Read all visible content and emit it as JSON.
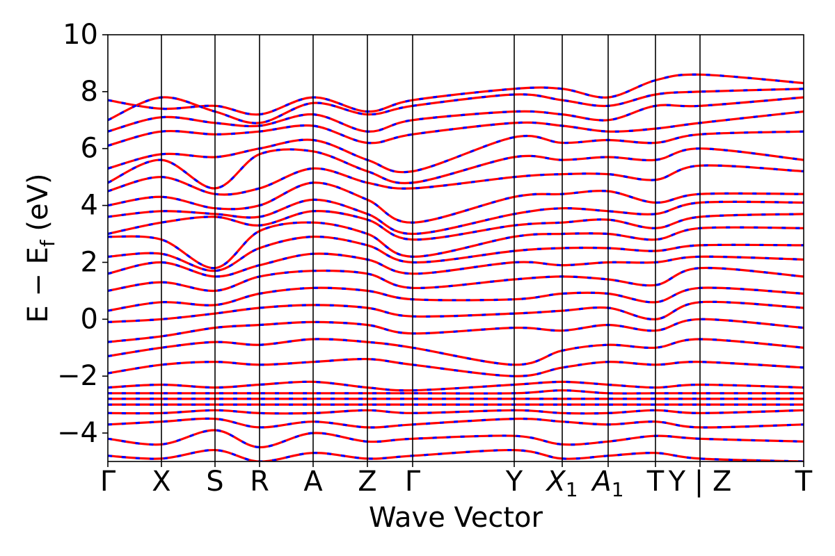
{
  "chart_data": {
    "type": "line",
    "title": "",
    "xlabel": "Wave Vector",
    "ylabel_parts": {
      "main": "E − E",
      "sub": "f",
      "tail": " (eV)"
    },
    "ylim": [
      -5,
      10
    ],
    "yticks": [
      {
        "value": -4,
        "label": "−4"
      },
      {
        "value": -2,
        "label": "−2"
      },
      {
        "value": 0,
        "label": "0"
      },
      {
        "value": 2,
        "label": "2"
      },
      {
        "value": 4,
        "label": "4"
      },
      {
        "value": 6,
        "label": "6"
      },
      {
        "value": 8,
        "label": "8"
      },
      {
        "value": 10,
        "label": "10"
      }
    ],
    "kpoints": [
      {
        "label": "Γ",
        "sub": "",
        "x": 0.0
      },
      {
        "label": "X",
        "sub": "",
        "x": 0.077
      },
      {
        "label": "S",
        "sub": "",
        "x": 0.154
      },
      {
        "label": "R",
        "sub": "",
        "x": 0.218
      },
      {
        "label": "A",
        "sub": "",
        "x": 0.295
      },
      {
        "label": "Z",
        "sub": "",
        "x": 0.373
      },
      {
        "label": "Γ",
        "sub": "",
        "x": 0.438
      },
      {
        "label": "Y",
        "sub": "",
        "x": 0.584
      },
      {
        "label": "X",
        "sub": "1",
        "x": 0.653
      },
      {
        "label": "A",
        "sub": "1",
        "x": 0.719
      },
      {
        "label": "T",
        "sub": "",
        "x": 0.787
      },
      {
        "label": "Y | Z",
        "sub": "",
        "x": 0.851
      },
      {
        "label": "T",
        "sub": "",
        "x": 1.0
      }
    ],
    "series": [
      {
        "color": "#ff0000",
        "dash": "none"
      },
      {
        "color": "#0000ff",
        "dash": "dashed"
      }
    ],
    "bands_note_values": [
      [
        7.7,
        7.4,
        7.5,
        7.2,
        7.8,
        7.3,
        7.7,
        8.1,
        8.1,
        7.8,
        8.4,
        8.6,
        8.3
      ],
      [
        7.0,
        7.8,
        7.3,
        6.9,
        7.6,
        7.2,
        7.5,
        7.9,
        7.7,
        7.5,
        7.9,
        8.0,
        8.1
      ],
      [
        6.6,
        7.1,
        6.9,
        6.8,
        7.2,
        6.6,
        7.0,
        7.3,
        7.2,
        7.0,
        7.5,
        7.5,
        7.8
      ],
      [
        6.1,
        6.6,
        6.5,
        6.6,
        6.8,
        6.2,
        6.5,
        6.9,
        6.8,
        6.6,
        6.7,
        6.9,
        7.3
      ],
      [
        5.3,
        5.8,
        5.7,
        6.0,
        6.3,
        5.6,
        5.2,
        6.4,
        6.2,
        6.3,
        6.2,
        6.5,
        6.6
      ],
      [
        4.8,
        5.6,
        4.6,
        5.8,
        5.9,
        5.2,
        4.8,
        5.7,
        5.6,
        5.7,
        5.6,
        6.0,
        5.6
      ],
      [
        4.5,
        5.0,
        4.4,
        4.6,
        5.3,
        4.8,
        4.6,
        5.0,
        5.1,
        5.1,
        4.9,
        5.4,
        5.2
      ],
      [
        4.0,
        4.3,
        3.9,
        4.0,
        4.8,
        4.2,
        3.4,
        4.3,
        4.4,
        4.5,
        4.1,
        4.4,
        4.4
      ],
      [
        3.6,
        3.8,
        3.7,
        3.6,
        4.2,
        3.7,
        3.0,
        3.7,
        3.9,
        3.8,
        3.7,
        4.1,
        4.1
      ],
      [
        3.0,
        3.4,
        3.6,
        3.3,
        3.8,
        3.5,
        2.8,
        3.3,
        3.4,
        3.5,
        3.2,
        3.6,
        3.7
      ],
      [
        2.9,
        2.8,
        1.8,
        3.1,
        3.4,
        3.0,
        2.2,
        2.9,
        3.0,
        3.0,
        2.8,
        3.2,
        3.2
      ],
      [
        2.2,
        2.3,
        1.7,
        2.5,
        2.9,
        2.6,
        2.0,
        2.4,
        2.5,
        2.5,
        2.4,
        2.6,
        2.6
      ],
      [
        1.6,
        2.0,
        1.5,
        1.9,
        2.3,
        2.1,
        1.6,
        2.0,
        1.9,
        2.0,
        2.0,
        2.2,
        2.1
      ],
      [
        1.0,
        1.3,
        1.0,
        1.5,
        1.7,
        1.6,
        1.1,
        1.4,
        1.5,
        1.4,
        1.2,
        1.8,
        1.5
      ],
      [
        0.3,
        0.6,
        0.5,
        0.9,
        1.1,
        1.0,
        0.7,
        0.7,
        0.9,
        0.9,
        0.6,
        1.1,
        0.9
      ],
      [
        -0.1,
        0.0,
        0.2,
        0.4,
        0.5,
        0.4,
        0.1,
        0.2,
        0.3,
        0.4,
        0.0,
        0.6,
        0.4
      ],
      [
        -0.8,
        -0.6,
        -0.3,
        -0.2,
        -0.1,
        -0.2,
        -0.5,
        -0.3,
        -0.4,
        -0.2,
        -0.4,
        0.0,
        -0.3
      ],
      [
        -1.3,
        -1.0,
        -0.8,
        -0.9,
        -0.7,
        -0.8,
        -1.0,
        -1.6,
        -1.1,
        -0.9,
        -1.0,
        -0.7,
        -1.0
      ],
      [
        -1.9,
        -1.6,
        -1.5,
        -1.6,
        -1.5,
        -1.4,
        -1.6,
        -2.0,
        -1.7,
        -1.5,
        -1.6,
        -1.5,
        -1.7
      ],
      [
        -2.4,
        -2.3,
        -2.4,
        -2.3,
        -2.2,
        -2.4,
        -2.5,
        -2.3,
        -2.2,
        -2.3,
        -2.4,
        -2.3,
        -2.4
      ],
      [
        -2.6,
        -2.6,
        -2.6,
        -2.6,
        -2.6,
        -2.6,
        -2.6,
        -2.6,
        -2.5,
        -2.6,
        -2.6,
        -2.6,
        -2.6
      ],
      [
        -2.8,
        -2.8,
        -2.8,
        -2.8,
        -2.8,
        -2.8,
        -2.8,
        -2.8,
        -2.8,
        -2.8,
        -2.8,
        -2.8,
        -2.8
      ],
      [
        -3.0,
        -3.0,
        -3.0,
        -3.0,
        -3.0,
        -3.0,
        -3.0,
        -3.0,
        -3.0,
        -3.0,
        -3.0,
        -3.0,
        -3.0
      ],
      [
        -3.3,
        -3.3,
        -3.2,
        -3.3,
        -3.3,
        -3.2,
        -3.3,
        -3.2,
        -3.3,
        -3.3,
        -3.2,
        -3.3,
        -3.2
      ],
      [
        -3.7,
        -3.6,
        -3.5,
        -3.8,
        -3.6,
        -3.8,
        -3.7,
        -3.5,
        -3.6,
        -3.7,
        -3.6,
        -3.8,
        -3.7
      ],
      [
        -4.2,
        -4.4,
        -3.9,
        -4.5,
        -4.0,
        -4.3,
        -4.2,
        -4.1,
        -4.4,
        -4.3,
        -4.1,
        -4.2,
        -4.3
      ],
      [
        -4.8,
        -4.9,
        -4.6,
        -5.0,
        -4.7,
        -4.9,
        -4.8,
        -4.6,
        -4.9,
        -4.8,
        -4.7,
        -4.9,
        -5.0
      ]
    ]
  }
}
